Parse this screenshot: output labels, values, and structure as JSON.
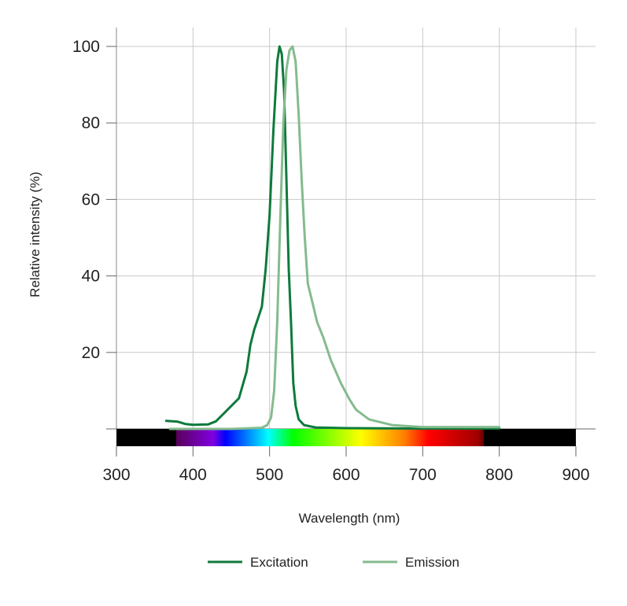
{
  "chart_data": {
    "type": "line",
    "title": "",
    "xlabel": "Wavelength (nm)",
    "ylabel": "Relative intensity (%)",
    "xlim": [
      300,
      900
    ],
    "ylim": [
      0,
      100
    ],
    "xticks": [
      300,
      400,
      500,
      600,
      700,
      800,
      900
    ],
    "yticks": [
      20,
      40,
      60,
      80,
      100
    ],
    "grid": true,
    "legend_position": "bottom",
    "spectrum_bar": {
      "visible_range": [
        378,
        780
      ]
    },
    "series": [
      {
        "name": "Excitation",
        "color": "#0e7a3c",
        "x": [
          365,
          380,
          390,
          400,
          420,
          430,
          440,
          450,
          460,
          470,
          475,
          480,
          485,
          490,
          495,
          500,
          505,
          510,
          513,
          516,
          519,
          522,
          525,
          528,
          531,
          534,
          538,
          545,
          560,
          600,
          700,
          800
        ],
        "y": [
          2.1,
          1.9,
          1.3,
          1.1,
          1.2,
          2,
          4,
          6,
          8,
          15,
          22,
          26,
          29,
          32,
          42,
          56,
          78,
          96,
          100,
          98,
          88,
          65,
          42,
          28,
          12,
          6,
          2.5,
          1,
          0.4,
          0.2,
          0.1,
          0.1
        ]
      },
      {
        "name": "Emission",
        "color": "#85bb8e",
        "x": [
          370,
          450,
          490,
          497,
          502,
          506,
          510,
          514,
          518,
          522,
          526,
          530,
          534,
          538,
          542,
          546,
          550,
          556,
          562,
          570,
          580,
          593,
          605,
          613,
          630,
          660,
          700,
          800
        ],
        "y": [
          0,
          0,
          0.3,
          1,
          3,
          10,
          28,
          55,
          80,
          94,
          99,
          100,
          96,
          82,
          65,
          50,
          38,
          33,
          28,
          24,
          18,
          12,
          7.5,
          5,
          2.5,
          1,
          0.5,
          0.5
        ]
      }
    ]
  }
}
